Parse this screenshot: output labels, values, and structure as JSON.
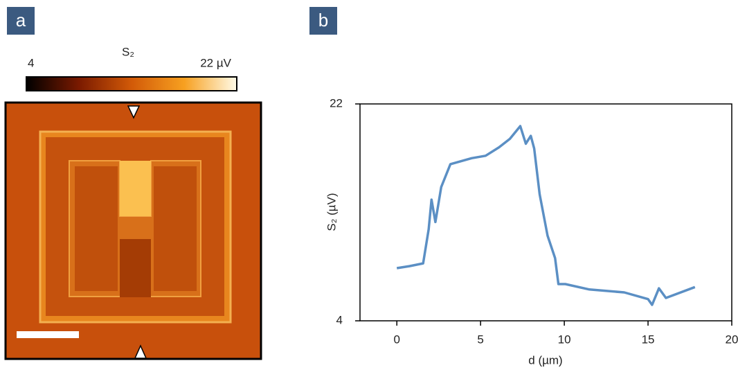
{
  "chart_data": [
    {
      "type": "image",
      "panel": "a",
      "colorbar": {
        "label": "S₂",
        "xlim": [
          4,
          22
        ],
        "xticks": [
          4,
          {
            "value": 22,
            "label": "22 µV"
          }
        ]
      }
    },
    {
      "type": "line",
      "panel": "b",
      "xlabel": "d (µm)",
      "ylabel": "S₂ (µV)",
      "xlim": [
        -2.2,
        20
      ],
      "ylim": [
        4,
        22
      ],
      "xticks": [
        0,
        5,
        10,
        15,
        20
      ],
      "yticks": [
        4,
        22
      ],
      "series": [
        {
          "color": "#5b8fc4",
          "x": [
            0,
            0.75,
            1.57,
            1.9,
            2.07,
            2.3,
            2.65,
            3.2,
            4.47,
            5.3,
            6.1,
            6.75,
            7.37,
            7.7,
            8.0,
            8.2,
            8.53,
            9.0,
            9.45,
            9.65,
            10.06,
            11.5,
            13.58,
            15.0,
            15.24,
            15.65,
            16.07,
            17.8
          ],
          "values": [
            8.37,
            8.54,
            8.77,
            11.6,
            14.06,
            12.2,
            15.1,
            17.0,
            17.5,
            17.7,
            18.4,
            19.1,
            20.16,
            18.7,
            19.35,
            18.3,
            14.5,
            11.07,
            9.2,
            7.05,
            7.05,
            6.6,
            6.36,
            5.8,
            5.32,
            6.7,
            5.9,
            6.8
          ]
        }
      ]
    }
  ]
}
